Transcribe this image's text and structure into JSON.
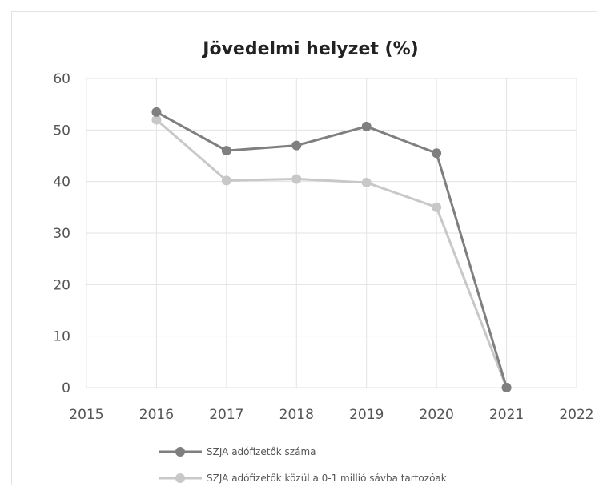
{
  "chart_data": {
    "type": "line",
    "title": "Jövedelmi helyzet (%)",
    "xlabel": "",
    "ylabel": "",
    "xlim": [
      2015,
      2022
    ],
    "ylim": [
      0,
      60
    ],
    "x_ticks": [
      "2015",
      "2016",
      "2017",
      "2018",
      "2019",
      "2020",
      "2021",
      "2022"
    ],
    "y_ticks": [
      "0",
      "10",
      "20",
      "30",
      "40",
      "50",
      "60"
    ],
    "grid": true,
    "legend_position": "bottom",
    "x": [
      2016,
      2017,
      2018,
      2019,
      2020,
      2021
    ],
    "series": [
      {
        "name": "SZJA adófizetők száma",
        "values": [
          53.5,
          46,
          47,
          50.7,
          45.5,
          0
        ],
        "color": "#7f7f7f"
      },
      {
        "name": "SZJA adófizetők közül a 0-1 millió sávba tartozóak",
        "values": [
          52,
          40.2,
          40.5,
          39.8,
          35,
          0
        ],
        "color": "#c8c8c8"
      }
    ]
  }
}
